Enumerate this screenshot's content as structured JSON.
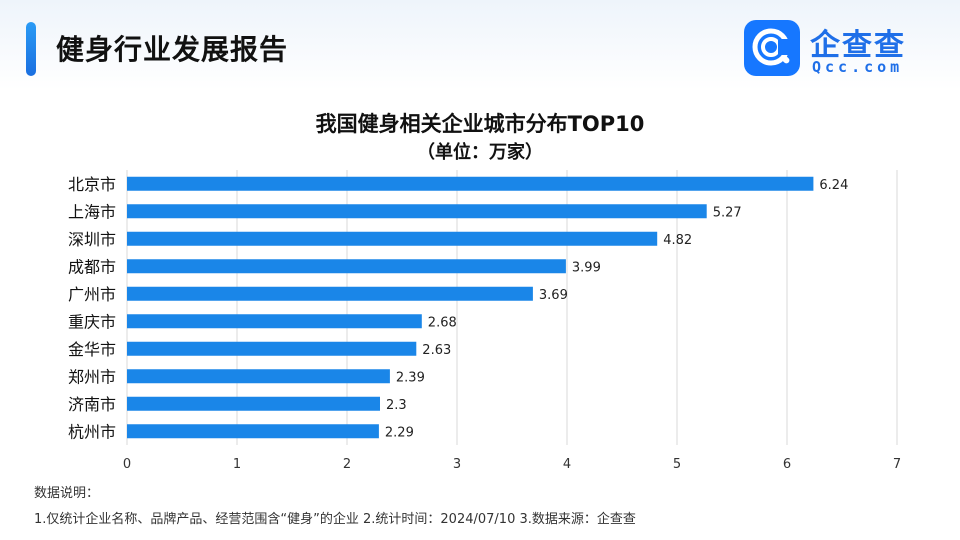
{
  "header": {
    "title": "健身行业发展报告"
  },
  "logo": {
    "cn": "企查查",
    "en": "Qcc.com"
  },
  "notes": {
    "heading": "数据说明：",
    "line": "1.仅统计企业名称、品牌产品、经营范围含“健身”的企业   2.统计时间：2024/07/10    3.数据来源：企查查"
  },
  "colors": {
    "bar": "#1a86e8",
    "accent": "#1677ff"
  },
  "chart_data": {
    "type": "bar",
    "orientation": "horizontal",
    "title": "我国健身相关企业城市分布TOP10",
    "subtitle": "（单位：万家）",
    "categories": [
      "北京市",
      "上海市",
      "深圳市",
      "成都市",
      "广州市",
      "重庆市",
      "金华市",
      "郑州市",
      "济南市",
      "杭州市"
    ],
    "values": [
      6.24,
      5.27,
      4.82,
      3.99,
      3.69,
      2.68,
      2.63,
      2.39,
      2.3,
      2.29
    ],
    "value_labels": [
      "6.24",
      "5.27",
      "4.82",
      "3.99",
      "3.69",
      "2.68",
      "2.63",
      "2.39",
      "2.3",
      "2.29"
    ],
    "xlim": [
      0,
      7
    ],
    "xticks": [
      "0",
      "1",
      "2",
      "3",
      "4",
      "5",
      "6",
      "7"
    ],
    "grid": "vertical",
    "legend": "none"
  }
}
